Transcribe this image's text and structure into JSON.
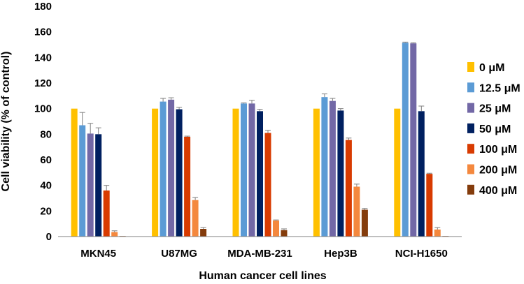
{
  "chart_data": {
    "type": "bar",
    "xlabel": "Human cancer cell lines",
    "ylabel": "Cell viability (% of control)",
    "ylim": [
      0,
      180
    ],
    "yticks": [
      0,
      20,
      40,
      60,
      80,
      100,
      120,
      140,
      160,
      180
    ],
    "categories": [
      "MKN45",
      "U87MG",
      "MDA-MB-231",
      "Hep3B",
      "NCI-H1650"
    ],
    "legend_position": "right",
    "series": [
      {
        "name": "0 μM",
        "color": "#FFC000",
        "values": [
          100,
          100,
          100,
          100,
          100
        ],
        "errors": [
          0,
          0,
          0,
          0,
          0
        ]
      },
      {
        "name": "12.5 μM",
        "color": "#5B9BD5",
        "values": [
          87,
          105.5,
          104,
          109,
          151.5
        ],
        "errors": [
          10,
          2.5,
          0.5,
          2.5,
          0.5
        ]
      },
      {
        "name": "25 μM",
        "color": "#7268A6",
        "values": [
          80.5,
          107,
          104,
          106,
          151
        ],
        "errors": [
          8,
          1.5,
          2.5,
          2,
          0.5
        ]
      },
      {
        "name": "50 μM",
        "color": "#002060",
        "values": [
          80,
          99.5,
          98,
          98.5,
          98
        ],
        "errors": [
          5,
          1.5,
          1.5,
          1.5,
          4
        ]
      },
      {
        "name": "100 μM",
        "color": "#D83B01",
        "values": [
          36,
          78,
          81,
          75.5,
          49
        ],
        "errors": [
          4,
          0.5,
          2,
          1.5,
          0.5
        ]
      },
      {
        "name": "200 μM",
        "color": "#F4883E",
        "values": [
          3.5,
          28.5,
          12.5,
          39,
          5.5
        ],
        "errors": [
          1,
          2,
          0.5,
          2,
          1.5
        ]
      },
      {
        "name": "400 μM",
        "color": "#843C0C",
        "values": [
          0.2,
          6,
          5,
          21,
          0.2
        ],
        "errors": [
          0,
          1,
          1,
          1,
          0
        ]
      }
    ]
  }
}
